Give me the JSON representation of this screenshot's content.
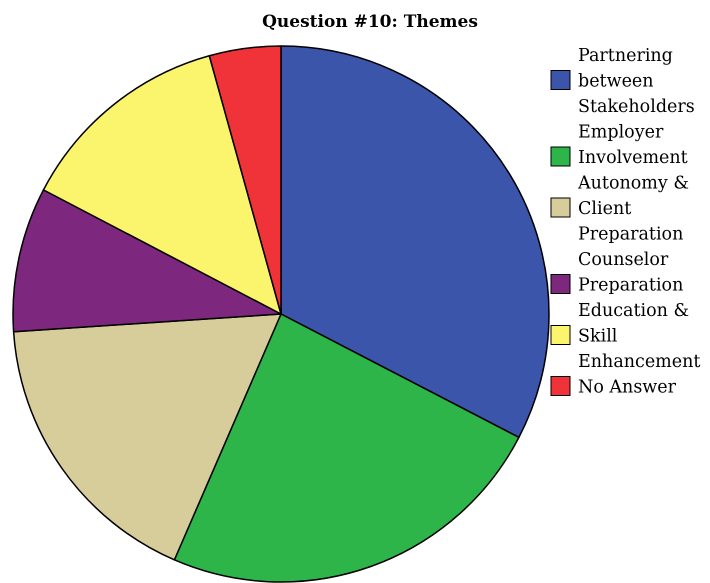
{
  "chart_data": {
    "type": "pie",
    "title": "Question #10: Themes",
    "start_angle": "12 o'clock",
    "direction": "clockwise",
    "legend_position": "right",
    "slices": [
      {
        "label": "Partnering between Stakeholders",
        "label_lines": [
          "Partnering",
          "between",
          "Stakeholders"
        ],
        "value": 33.3,
        "color": "#3b55ab"
      },
      {
        "label": "Employer Involvement",
        "label_lines": [
          "Employer",
          "Involvement"
        ],
        "value": 24.4,
        "color": "#2db54a"
      },
      {
        "label": "Autonomy & Client Preparation",
        "label_lines": [
          "Autonomy &",
          "Client",
          "Preparation"
        ],
        "value": 17.8,
        "color": "#d6cd9b"
      },
      {
        "label": "Counselor Preparation",
        "label_lines": [
          "Counselor",
          "Preparation"
        ],
        "value": 8.9,
        "color": "#7d277e"
      },
      {
        "label": "Education & Skill Enhancement",
        "label_lines": [
          "Education &",
          "Skill",
          "Enhancement"
        ],
        "value": 13.3,
        "color": "#fbf56e"
      },
      {
        "label": "No Answer",
        "label_lines": [
          "No Answer"
        ],
        "value": 4.4,
        "color": "#ef3339"
      }
    ]
  }
}
